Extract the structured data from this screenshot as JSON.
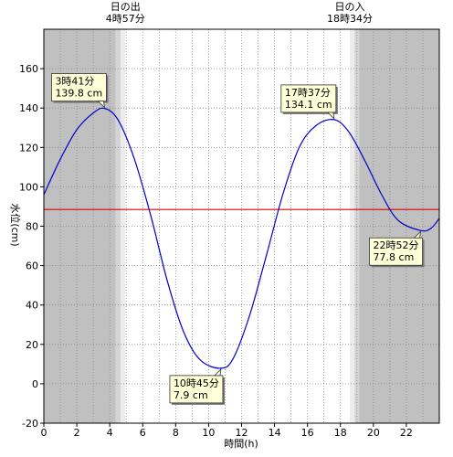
{
  "chart_data": {
    "type": "line",
    "xlabel": "時間(h)",
    "ylabel": "水位(cm)",
    "xlim": [
      0,
      24
    ],
    "ylim": [
      -20,
      180
    ],
    "x_ticks": [
      0,
      2,
      4,
      6,
      8,
      10,
      12,
      14,
      16,
      18,
      20,
      22
    ],
    "x_tick_labels": [
      "0",
      "2",
      "4",
      "6",
      "8",
      "10",
      "12",
      "14",
      "16",
      "18",
      "20",
      "22"
    ],
    "y_ticks": [
      -20,
      0,
      20,
      40,
      60,
      80,
      100,
      120,
      140,
      160
    ],
    "y_tick_labels": [
      "-20",
      "0",
      "20",
      "40",
      "60",
      "80",
      "100",
      "120",
      "140",
      "160"
    ],
    "grid": true,
    "sunrise": {
      "label": "日の出",
      "time_label": "4時57分",
      "x": 4.95
    },
    "sunset": {
      "label": "日の入",
      "time_label": "18時34分",
      "x": 18.567
    },
    "twilight_minutes": 35,
    "mean_level": 88.5,
    "series": [
      {
        "color": "#0000cc",
        "x": [
          0,
          1,
          2,
          3,
          3.683,
          4.5,
          5.5,
          6.5,
          7.5,
          8.5,
          9.5,
          10.75,
          11.5,
          12.5,
          13.5,
          14.5,
          15.5,
          16.5,
          17.617,
          18.5,
          19.5,
          20.5,
          21.5,
          22.867,
          23.5,
          24
        ],
        "values": [
          96,
          114,
          129,
          137.5,
          139.8,
          134,
          114,
          85,
          52,
          26,
          12,
          7.9,
          13,
          35,
          65,
          96,
          120,
          131,
          134.1,
          128,
          113,
          96,
          83,
          77.8,
          79,
          84
        ]
      }
    ],
    "annotations": [
      {
        "time": "3時41分",
        "value": "139.8 cm",
        "x": 3.683,
        "y": 139.8,
        "pos": "above-left"
      },
      {
        "time": "10時45分",
        "value": "7.9 cm",
        "x": 10.75,
        "y": 7.9,
        "pos": "below-left"
      },
      {
        "time": "17時37分",
        "value": "134.1 cm",
        "x": 17.617,
        "y": 134.1,
        "pos": "above-left"
      },
      {
        "time": "22時52分",
        "value": "77.8 cm",
        "x": 22.867,
        "y": 77.8,
        "pos": "below-left"
      }
    ],
    "colors": {
      "night": "#c0c0c0",
      "twilight_dark": "#d4d4d4",
      "twilight_light": "#ececec",
      "day": "#ffffff",
      "mean_line": "#dd0000",
      "callout_fill": "#ffffd8"
    }
  }
}
